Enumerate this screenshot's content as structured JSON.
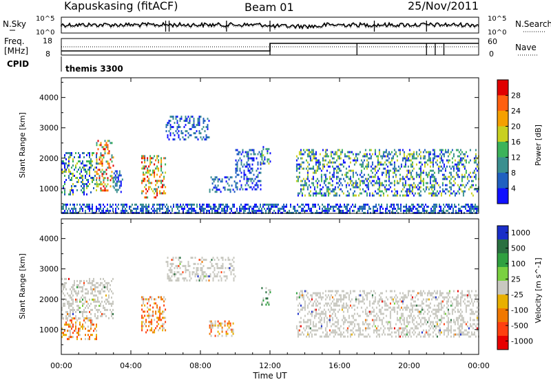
{
  "header": {
    "site": "Kapuskasing (fitACF)",
    "beam": "Beam 01",
    "date": "25/Nov/2011"
  },
  "status_panels": {
    "nsky_label": "N.Sky",
    "nsky_ticks": [
      "10^5",
      "10^0"
    ],
    "nsearch_label": "N.Search",
    "nsearch_ticks": [
      "10^5",
      "10^0"
    ],
    "freq_label_1": "Freq.",
    "freq_label_2": "[MHz]",
    "freq_ticks": [
      "18",
      "8"
    ],
    "nave_label": "Nave",
    "nave_ticks": [
      "60",
      "0"
    ],
    "cpid_label": "CPID",
    "cpid_value": "themis 3300",
    "freq_step_hour": 12.0,
    "nave_levels": [
      20,
      60
    ],
    "nave_step_hours": [
      12.0,
      17.0,
      21.0,
      21.5,
      22.0
    ]
  },
  "chart_data": [
    {
      "type": "heatmap",
      "name": "power",
      "ylabel": "Slant Range [km]",
      "yticks": [
        "1000",
        "2000",
        "3000",
        "4000"
      ],
      "ylim": [
        180,
        4650
      ],
      "xlim": [
        0,
        24
      ],
      "colorbar_label": "Power [dB]",
      "colorbar_ticks": [
        "4",
        "8",
        "12",
        "16",
        "20",
        "24",
        "28"
      ],
      "colorbar_range": [
        0,
        32
      ],
      "colors": [
        "#1010ff",
        "#2060c0",
        "#3a8f8f",
        "#3cb35a",
        "#c8d020",
        "#f5a000",
        "#ff6010",
        "#e00000"
      ],
      "features": [
        {
          "x": [
            0.0,
            2.0
          ],
          "range": [
            800,
            2200
          ],
          "level": "mid"
        },
        {
          "x": [
            2.0,
            3.0
          ],
          "range": [
            900,
            2600
          ],
          "level": "high"
        },
        {
          "x": [
            3.0,
            3.5
          ],
          "range": [
            900,
            1600
          ],
          "level": "low"
        },
        {
          "x": [
            4.6,
            6.0
          ],
          "range": [
            700,
            2100
          ],
          "level": "high"
        },
        {
          "x": [
            6.0,
            8.5
          ],
          "range": [
            2600,
            3400
          ],
          "level": "low"
        },
        {
          "x": [
            8.5,
            10.0
          ],
          "range": [
            900,
            1400
          ],
          "level": "low"
        },
        {
          "x": [
            10.0,
            11.5
          ],
          "range": [
            1000,
            2300
          ],
          "level": "low"
        },
        {
          "x": [
            11.5,
            12.0
          ],
          "range": [
            1800,
            2400
          ],
          "level": "mid"
        },
        {
          "x": [
            13.5,
            24.0
          ],
          "range": [
            800,
            2300
          ],
          "level": "mid"
        },
        {
          "x": [
            0.0,
            24.0
          ],
          "range": [
            200,
            500
          ],
          "level": "low"
        }
      ]
    },
    {
      "type": "heatmap",
      "name": "velocity",
      "ylabel": "Slant Range [km]",
      "yticks": [
        "1000",
        "2000",
        "3000",
        "4000"
      ],
      "ylim": [
        180,
        4650
      ],
      "xlim": [
        0,
        24
      ],
      "xticks": [
        "00:00",
        "04:00",
        "08:00",
        "12:00",
        "16:00",
        "20:00",
        "00:00"
      ],
      "xlabel": "Time UT",
      "colorbar_label": "Velocity [m s^-1]",
      "colorbar_ticks": [
        "1000",
        "500",
        "100",
        "25",
        "-25",
        "-100",
        "-500",
        "-1000"
      ],
      "colors": [
        "#1a2ec8",
        "#2a7040",
        "#30a040",
        "#7ad040",
        "#c8c8c0",
        "#e8b000",
        "#f07800",
        "#ff4010",
        "#e80000"
      ],
      "features": [
        {
          "x": [
            0.0,
            2.0
          ],
          "range": [
            700,
            1400
          ],
          "velocity": "negative"
        },
        {
          "x": [
            0.0,
            3.0
          ],
          "range": [
            1400,
            2700
          ],
          "velocity": "near-zero"
        },
        {
          "x": [
            4.6,
            6.0
          ],
          "range": [
            900,
            2100
          ],
          "velocity": "negative"
        },
        {
          "x": [
            6.0,
            10.0
          ],
          "range": [
            2600,
            3400
          ],
          "velocity": "near-zero"
        },
        {
          "x": [
            8.5,
            10.0
          ],
          "range": [
            800,
            1300
          ],
          "velocity": "negative"
        },
        {
          "x": [
            11.5,
            12.0
          ],
          "range": [
            1800,
            2400
          ],
          "velocity": "positive"
        },
        {
          "x": [
            13.5,
            24.0
          ],
          "range": [
            800,
            2300
          ],
          "velocity": "near-zero"
        }
      ]
    }
  ]
}
